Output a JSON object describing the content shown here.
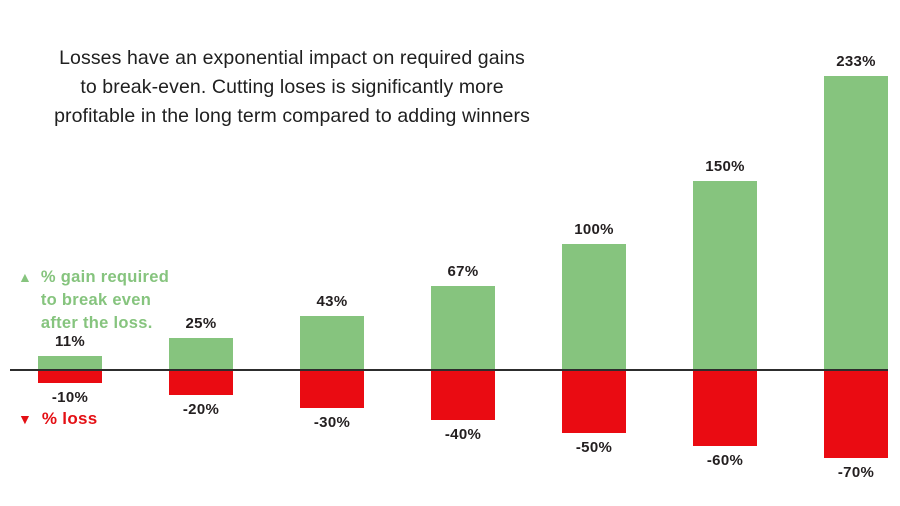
{
  "title": {
    "lines": [
      "Losses have an exponential impact on required gains",
      "to break-even. Cutting loses is significantly more",
      "profitable in the long term compared to adding winners"
    ]
  },
  "legend": {
    "gain": {
      "marker": "▲",
      "lines": [
        "% gain required",
        "to break even",
        "after the loss."
      ]
    },
    "loss": {
      "marker": "▼",
      "label": "% loss"
    }
  },
  "colors": {
    "gain_green": "#86c47e",
    "loss_red": "#ea0b12",
    "axis": "#2d2d2d",
    "label_text": "#231f20"
  },
  "chart_data": {
    "type": "bar",
    "title": "Losses have an exponential impact on required gains to break-even. Cutting loses is significantly more profitable in the long term compared to adding winners",
    "categories": [
      "-10%",
      "-20%",
      "-30%",
      "-40%",
      "-50%",
      "-60%",
      "-70%"
    ],
    "series": [
      {
        "name": "% gain required to break even after the loss.",
        "values": [
          11,
          25,
          43,
          67,
          100,
          150,
          233
        ],
        "labels": [
          "11%",
          "25%",
          "43%",
          "67%",
          "100%",
          "150%",
          "233%"
        ],
        "color": "#86c47e"
      },
      {
        "name": "% loss",
        "values": [
          -10,
          -20,
          -30,
          -40,
          -50,
          -60,
          -70
        ],
        "labels": [
          "-10%",
          "-20%",
          "-30%",
          "-40%",
          "-50%",
          "-60%",
          "-70%"
        ],
        "color": "#ea0b12"
      }
    ],
    "ylim": [
      -70,
      233
    ],
    "baseline": 0,
    "grid": false,
    "legend_position": "left",
    "data_labels": true
  }
}
